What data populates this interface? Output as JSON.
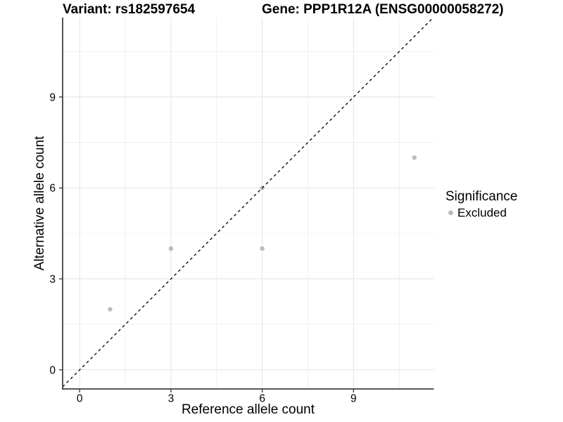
{
  "titles": {
    "variant": "Variant: rs182597654",
    "gene": "Gene: PPP1R12A (ENSG00000058272)"
  },
  "axes": {
    "x_title": "Reference allele count",
    "y_title": "Alternative allele count"
  },
  "legend": {
    "title": "Significance",
    "items": [
      {
        "label": "Excluded",
        "color": "#bcbcbc"
      }
    ]
  },
  "chart_data": {
    "type": "scatter",
    "title": "Variant: rs182597654   Gene: PPP1R12A (ENSG00000058272)",
    "xlabel": "Reference allele count",
    "ylabel": "Alternative allele count",
    "xlim": [
      -0.56,
      11.64
    ],
    "ylim": [
      -0.63,
      11.62
    ],
    "x_ticks": [
      0,
      3,
      6,
      9
    ],
    "y_ticks": [
      0,
      3,
      6,
      9
    ],
    "minor_grid_step": 1.5,
    "grid": true,
    "legend_position": "right-center",
    "series": [
      {
        "name": "Excluded",
        "color": "#bcbcbc",
        "points": [
          [
            1,
            2
          ],
          [
            3,
            4
          ],
          [
            6,
            4
          ],
          [
            6,
            6
          ],
          [
            11,
            7
          ]
        ]
      }
    ],
    "reference_line": {
      "type": "identity",
      "slope": 1,
      "intercept": 0,
      "style": "dashed"
    },
    "style": {
      "point_radius": 3.2,
      "grid_major": "#e3e3e3",
      "grid_minor": "#f0f0f0",
      "axis_line": "#404040",
      "reference_line_color": "#000000",
      "tick_label_color": "#000000"
    }
  }
}
